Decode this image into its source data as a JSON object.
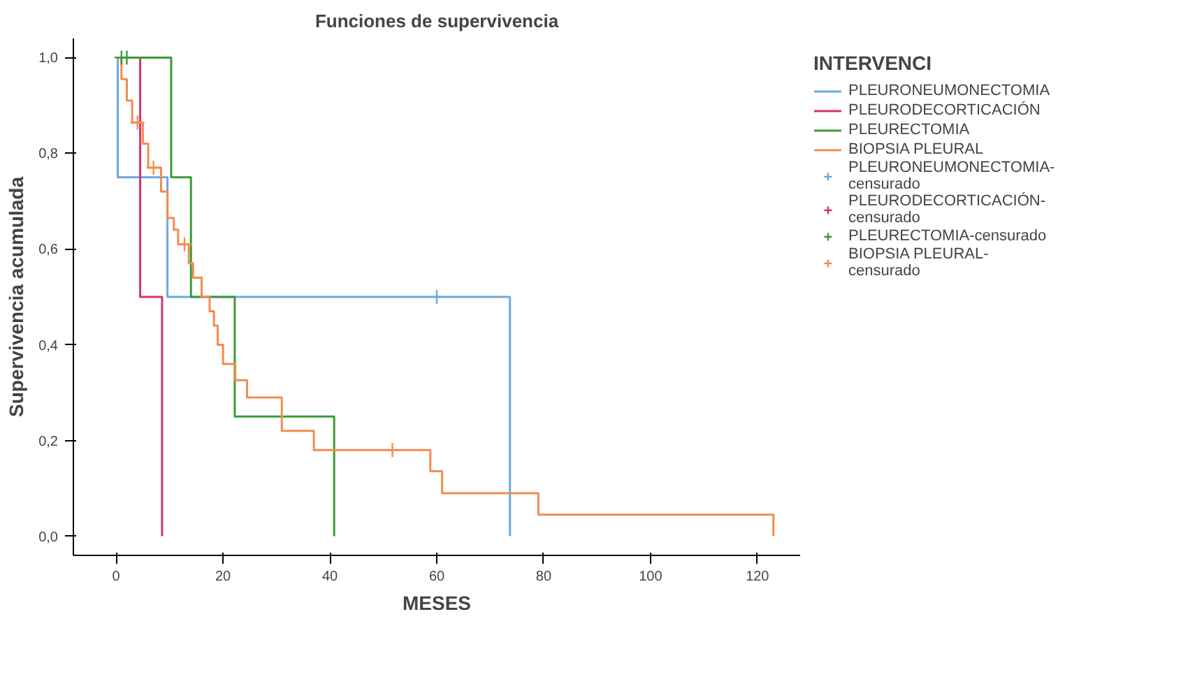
{
  "chart_data": {
    "type": "step",
    "title": "Funciones de supervivencia",
    "xlabel": "MESES",
    "ylabel": "Supervivencia acumulada",
    "legend_title": "INTERVENCI",
    "legend": "right",
    "xlim": [
      -8,
      128
    ],
    "xticks": [
      0,
      20,
      40,
      60,
      80,
      100,
      120
    ],
    "ylim": [
      -0.04,
      1.04
    ],
    "yticks": [
      {
        "value": 0,
        "label": "0,0"
      },
      {
        "value": 0.2,
        "label": "0,2"
      },
      {
        "value": 0.4,
        "label": "0,4"
      },
      {
        "value": 0.6,
        "label": "0,6"
      },
      {
        "value": 0.8,
        "label": "0,8"
      },
      {
        "value": 1,
        "label": "1,0"
      }
    ],
    "series": [
      {
        "name": "PLEURONEUMONECTOMIA",
        "color": "#6fa8dc",
        "x": [
          0,
          0.3,
          9.6,
          73.7
        ],
        "values": [
          1,
          0.75,
          0.5,
          0
        ]
      },
      {
        "name": "PLEURODECORTICACIÓN",
        "color": "#d6336c",
        "x": [
          0,
          4.5,
          8.6
        ],
        "values": [
          1,
          0.5,
          0
        ]
      },
      {
        "name": "PLEURECTOMIA",
        "color": "#3a9a3a",
        "x": [
          0,
          10.3,
          14,
          22.2,
          40.8
        ],
        "values": [
          1,
          0.75,
          0.5,
          0.25,
          0
        ]
      },
      {
        "name": "BIOPSIA PLEURAL",
        "color": "#f28c50",
        "x": [
          0,
          1,
          2,
          3,
          5,
          6,
          8.4,
          9.6,
          10.8,
          11.6,
          13.6,
          14.4,
          16,
          17.5,
          18.3,
          19,
          20,
          22.3,
          24.5,
          31,
          37,
          58.8,
          61,
          79,
          123
        ],
        "values": [
          1,
          0.955,
          0.91,
          0.864,
          0.82,
          0.77,
          0.72,
          0.665,
          0.64,
          0.61,
          0.57,
          0.54,
          0.5,
          0.47,
          0.44,
          0.4,
          0.36,
          0.326,
          0.29,
          0.22,
          0.18,
          0.136,
          0.09,
          0.045,
          0
        ]
      },
      {
        "name": "PLEURONEUMONECTOMIA-censurado",
        "type": "scatter",
        "marker": "cross",
        "color": "#6fa8dc",
        "x": [
          60
        ],
        "values": [
          0.5
        ]
      },
      {
        "name": "PLEURODECORTICACIÓN-censurado",
        "type": "scatter",
        "marker": "cross",
        "color": "#d6336c"
      },
      {
        "name": "PLEURECTOMIA-censurado",
        "type": "scatter",
        "marker": "cross",
        "color": "#3a9a3a",
        "x": [
          1,
          2
        ],
        "values": [
          1,
          1
        ]
      },
      {
        "name": "BIOPSIA PLEURAL-censurado",
        "type": "scatter",
        "marker": "cross",
        "color": "#f28c50",
        "x": [
          4,
          7,
          12.8,
          51.7
        ],
        "values": [
          0.864,
          0.77,
          0.61,
          0.18
        ]
      }
    ]
  }
}
